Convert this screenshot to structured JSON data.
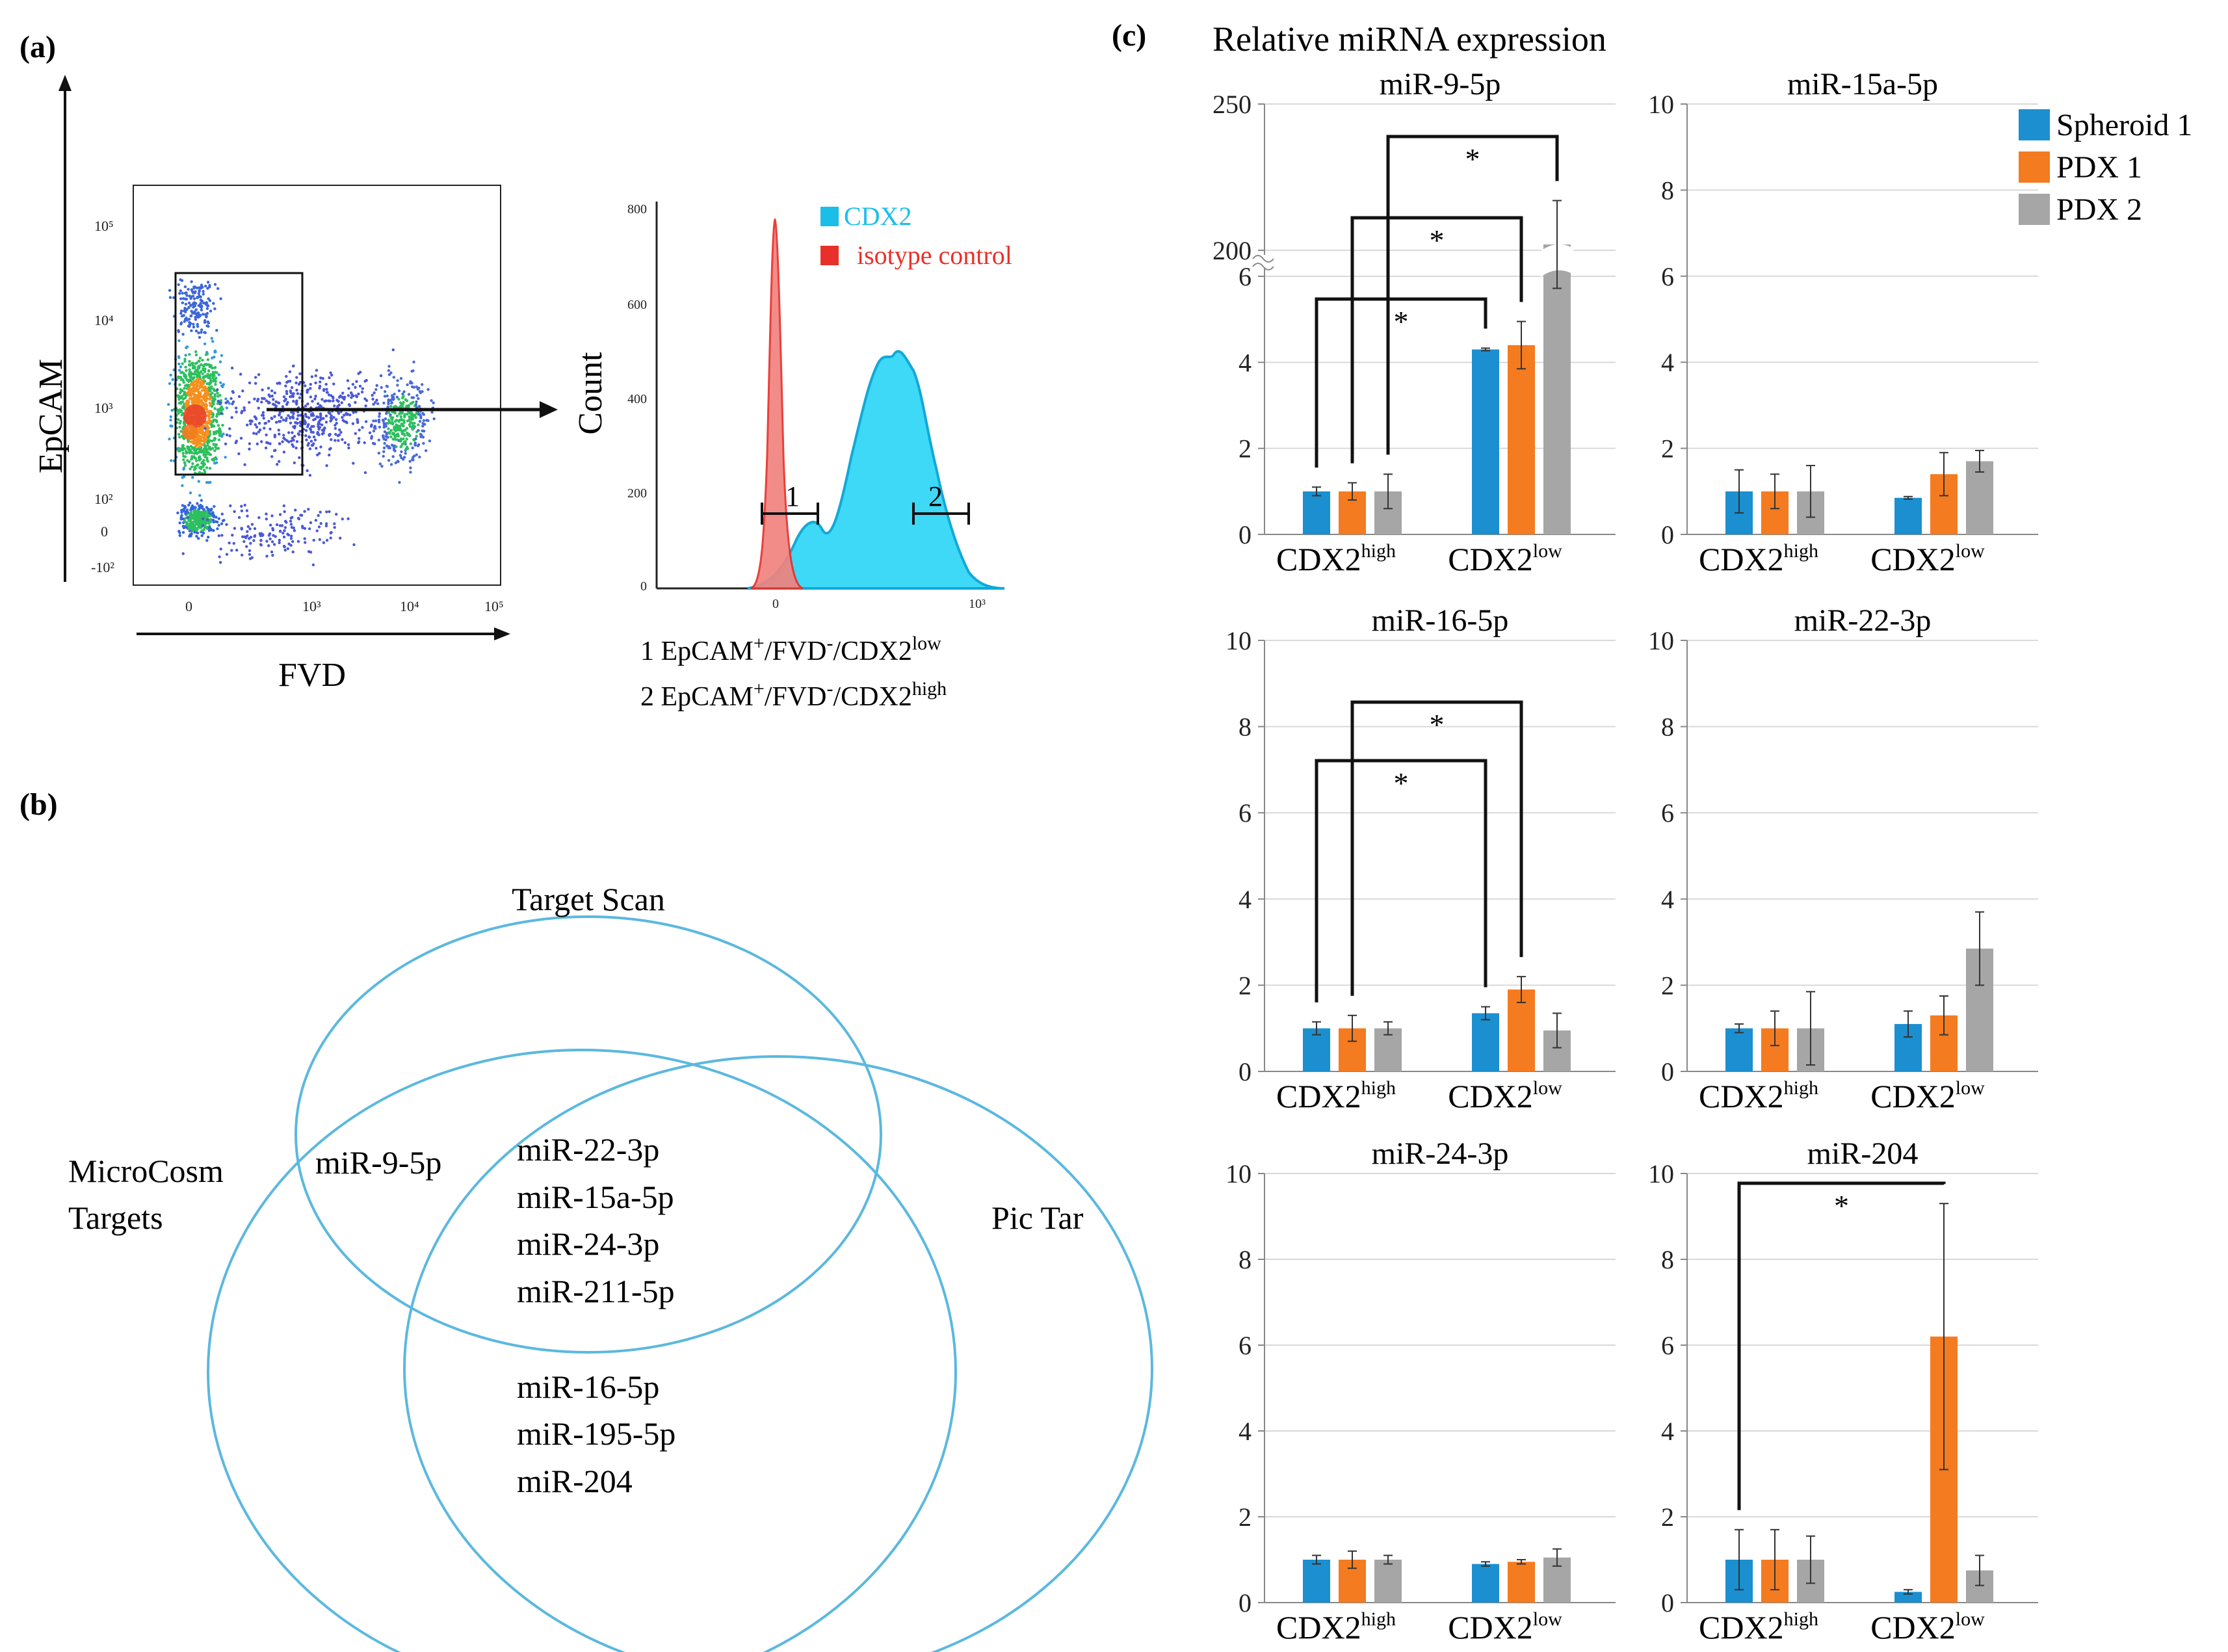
{
  "panels": {
    "a": "(a)",
    "b": "(b)",
    "c": "(c)"
  },
  "panel_a": {
    "dot_plot": {
      "ylabel": "EpCAM",
      "xlabel": "FVD",
      "yticks": [
        "10⁵",
        "10⁴",
        "10³",
        "10²",
        "0",
        "-10²"
      ],
      "xticks": [
        "0",
        "10³",
        "10⁴",
        "10⁵"
      ]
    },
    "histogram": {
      "ylabel": "Count",
      "yticks": [
        "800",
        "600",
        "400",
        "200",
        "0"
      ],
      "xticks": [
        "0",
        "10³"
      ],
      "legend": [
        {
          "label": "CDX2",
          "color": "#1BBEE8"
        },
        {
          "label": "isotype control",
          "color": "#E8302A"
        }
      ],
      "gate1": "1",
      "gate2": "2",
      "caption1_main": "1 EpCAM",
      "caption1_sup1": "+",
      "caption1_mid": "/FVD",
      "caption1_sup2": "-",
      "caption1_end": "/CDX2",
      "caption1_sup3": "low",
      "caption2_main": "2 EpCAM",
      "caption2_sup1": "+",
      "caption2_mid": "/FVD",
      "caption2_sup2": "-",
      "caption2_end": "/CDX2",
      "caption2_sup3": "high"
    }
  },
  "panel_b": {
    "sets": [
      "Target Scan",
      "MicroCosm",
      "Targets",
      "Pic Tar"
    ],
    "ts_mc": [
      "miR-9-5p"
    ],
    "all_three": [
      "miR-22-3p",
      "miR-15a-5p",
      "miR-24-3p",
      "miR-211-5p"
    ],
    "mc_pt": [
      "miR-16-5p",
      "miR-195-5p",
      "miR-204"
    ]
  },
  "chart_data": {
    "type": "bar",
    "title": "Relative miRNA expression",
    "legend": [
      {
        "name": "Spheroid 1",
        "color": "#1B8FCF"
      },
      {
        "name": "PDX 1",
        "color": "#F47B20"
      },
      {
        "name": "PDX 2",
        "color": "#A6A6A6"
      }
    ],
    "category_base": "CDX2",
    "categories": [
      "high",
      "low"
    ],
    "significance": "*",
    "subplots": [
      {
        "title": "miR-9-5p",
        "broken_axis": true,
        "yticks_lower": [
          "0",
          "2",
          "4",
          "6"
        ],
        "yticks_upper": [
          "200",
          "250"
        ],
        "values": [
          [
            1.0,
            1.0,
            1.0
          ],
          [
            4.3,
            4.4,
            202
          ]
        ],
        "errors": [
          [
            0.1,
            0.2,
            0.4
          ],
          [
            0.03,
            0.55,
            15
          ]
        ],
        "brackets": [
          {
            "from": 0,
            "to": 3
          },
          {
            "from": 1,
            "to": 4
          },
          {
            "from": 2,
            "to": 5
          }
        ]
      },
      {
        "title": "miR-15a-5p",
        "ylim": [
          0,
          10
        ],
        "yticks": [
          "0",
          "2",
          "4",
          "6",
          "8",
          "10"
        ],
        "values": [
          [
            1.0,
            1.0,
            1.0
          ],
          [
            0.85,
            1.4,
            1.7
          ]
        ],
        "errors": [
          [
            0.5,
            0.4,
            0.6
          ],
          [
            0.03,
            0.5,
            0.25
          ]
        ],
        "brackets": []
      },
      {
        "title": "miR-16-5p",
        "ylim": [
          0,
          10
        ],
        "yticks": [
          "0",
          "2",
          "4",
          "6",
          "8",
          "10"
        ],
        "values": [
          [
            1.0,
            1.0,
            1.0
          ],
          [
            1.35,
            1.9,
            0.95
          ]
        ],
        "errors": [
          [
            0.15,
            0.3,
            0.15
          ],
          [
            0.15,
            0.3,
            0.4
          ]
        ],
        "brackets": [
          {
            "from": 0,
            "to": 3
          },
          {
            "from": 1,
            "to": 4
          }
        ]
      },
      {
        "title": "miR-22-3p",
        "ylim": [
          0,
          10
        ],
        "yticks": [
          "0",
          "2",
          "4",
          "6",
          "8",
          "10"
        ],
        "values": [
          [
            1.0,
            1.0,
            1.0
          ],
          [
            1.1,
            1.3,
            2.85
          ]
        ],
        "errors": [
          [
            0.1,
            0.4,
            0.85
          ],
          [
            0.3,
            0.45,
            0.85
          ]
        ],
        "brackets": []
      },
      {
        "title": "miR-24-3p",
        "ylim": [
          0,
          10
        ],
        "yticks": [
          "0",
          "2",
          "4",
          "6",
          "8",
          "10"
        ],
        "values": [
          [
            1.0,
            1.0,
            1.0
          ],
          [
            0.9,
            0.95,
            1.05
          ]
        ],
        "errors": [
          [
            0.1,
            0.2,
            0.1
          ],
          [
            0.05,
            0.05,
            0.2
          ]
        ],
        "brackets": []
      },
      {
        "title": "miR-204",
        "ylim": [
          0,
          10
        ],
        "yticks": [
          "0",
          "2",
          "4",
          "6",
          "8",
          "10"
        ],
        "values": [
          [
            1.0,
            1.0,
            1.0
          ],
          [
            0.25,
            6.2,
            0.75
          ]
        ],
        "errors": [
          [
            0.7,
            0.7,
            0.55
          ],
          [
            0.05,
            3.1,
            0.35
          ]
        ],
        "brackets": [
          {
            "from": 0,
            "to": 4
          }
        ]
      }
    ]
  }
}
